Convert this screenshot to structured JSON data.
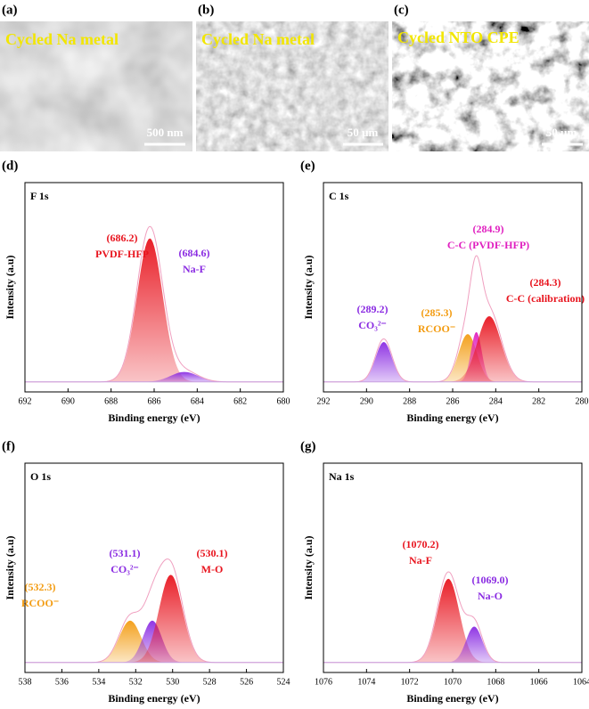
{
  "images": [
    {
      "panel": "(a)",
      "caption": "Cycled Na metal",
      "scale_bar": "500 nm"
    },
    {
      "panel": "(b)",
      "caption": "Cycled Na metal",
      "scale_bar": "50 µm"
    },
    {
      "panel": "(c)",
      "caption": "Cycled NTO CPE",
      "scale_bar": "50 µm"
    }
  ],
  "chart_data": [
    {
      "type": "peak",
      "panel": "(d)",
      "title": "F 1s",
      "xlabel": "Binding energy (eV)",
      "ylabel": "Intensity (a.u)",
      "xlim": [
        692,
        680
      ],
      "xticks": [
        692,
        690,
        688,
        686,
        684,
        682,
        680
      ],
      "ylim": [
        -0.05,
        1
      ],
      "peaks": [
        {
          "name": "PVDF-HFP",
          "label": "(686.2)",
          "position": 686.2,
          "height": 0.72,
          "fwhm": 1.4,
          "color": "#e8141e"
        },
        {
          "name": "Na-F",
          "label": "(684.6)",
          "position": 684.6,
          "height": 0.05,
          "fwhm": 1.5,
          "color": "#8a2be2"
        }
      ]
    },
    {
      "type": "peak",
      "panel": "(e)",
      "title": "C 1s",
      "xlabel": "Binding energy (eV)",
      "ylabel": "Intensity (a.u)",
      "xlim": [
        292,
        280
      ],
      "xticks": [
        292,
        290,
        288,
        286,
        284,
        282,
        280
      ],
      "ylim": [
        -0.05,
        1
      ],
      "peaks": [
        {
          "name": "CO₃²⁻",
          "label": "(289.2)",
          "position": 289.2,
          "height": 0.2,
          "fwhm": 0.9,
          "color": "#8a2be2"
        },
        {
          "name": "RCOO⁻",
          "label": "(285.3)",
          "position": 285.3,
          "height": 0.24,
          "fwhm": 1.0,
          "color": "#f39c12"
        },
        {
          "name": "C-C (PVDF-HFP)",
          "label": "(284.9)",
          "position": 284.9,
          "height": 0.25,
          "fwhm": 0.6,
          "color": "#e020c0"
        },
        {
          "name": "C-C (calibration)",
          "label": "(284.3)",
          "position": 284.3,
          "height": 0.33,
          "fwhm": 1.3,
          "color": "#e8141e"
        }
      ]
    },
    {
      "type": "peak",
      "panel": "(f)",
      "title": "O 1s",
      "xlabel": "Binding energy (eV)",
      "ylabel": "Intensity (a.u)",
      "xlim": [
        538,
        524
      ],
      "xticks": [
        538,
        536,
        534,
        532,
        530,
        528,
        526,
        524
      ],
      "ylim": [
        -0.05,
        1
      ],
      "peaks": [
        {
          "name": "RCOO⁻",
          "label": "(532.3)",
          "position": 532.3,
          "height": 0.21,
          "fwhm": 1.4,
          "color": "#f39c12"
        },
        {
          "name": "CO₃²⁻",
          "label": "(531.1)",
          "position": 531.1,
          "height": 0.21,
          "fwhm": 1.2,
          "color": "#8a2be2"
        },
        {
          "name": "M-O",
          "label": "(530.1)",
          "position": 530.1,
          "height": 0.44,
          "fwhm": 1.5,
          "color": "#e8141e"
        }
      ]
    },
    {
      "type": "peak",
      "panel": "(g)",
      "title": "Na 1s",
      "xlabel": "Binding energy (eV)",
      "ylabel": "Intensity (a.u)",
      "xlim": [
        1076,
        1064
      ],
      "xticks": [
        1076,
        1074,
        1072,
        1070,
        1068,
        1066,
        1064
      ],
      "ylim": [
        -0.05,
        1
      ],
      "peaks": [
        {
          "name": "Na-F",
          "label": "(1070.2)",
          "position": 1070.2,
          "height": 0.42,
          "fwhm": 1.2,
          "color": "#e8141e"
        },
        {
          "name": "Na-O",
          "label": "(1069.0)",
          "position": 1069.0,
          "height": 0.18,
          "fwhm": 0.9,
          "color": "#8a2be2"
        }
      ]
    }
  ]
}
